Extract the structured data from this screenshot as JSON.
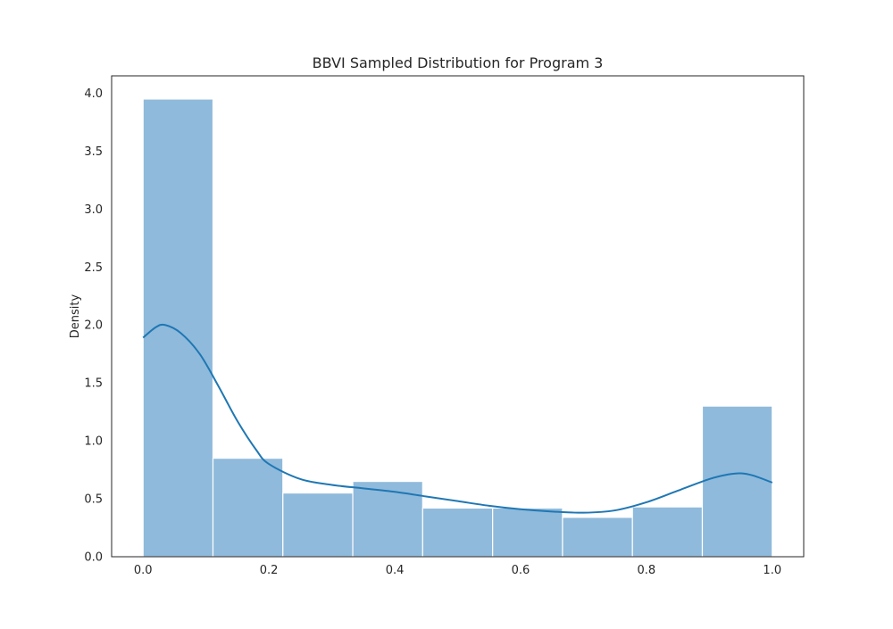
{
  "chart_data": {
    "type": "histogram",
    "title": "BBVI Sampled Distribution for Program 3",
    "xlabel": "",
    "ylabel": "Density",
    "xlim": [
      -0.05,
      1.05
    ],
    "ylim": [
      0,
      4.15
    ],
    "x_ticks": [
      "0.0",
      "0.2",
      "0.4",
      "0.6",
      "0.8",
      "1.0"
    ],
    "y_ticks": [
      "0.0",
      "0.5",
      "1.0",
      "1.5",
      "2.0",
      "2.5",
      "3.0",
      "3.5",
      "4.0"
    ],
    "grid": false,
    "bins": [
      {
        "start": 0.0,
        "end": 0.1111,
        "density": 3.95
      },
      {
        "start": 0.1111,
        "end": 0.2222,
        "density": 0.85
      },
      {
        "start": 0.2222,
        "end": 0.3333,
        "density": 0.55
      },
      {
        "start": 0.3333,
        "end": 0.4444,
        "density": 0.65
      },
      {
        "start": 0.4444,
        "end": 0.5556,
        "density": 0.42
      },
      {
        "start": 0.5556,
        "end": 0.6667,
        "density": 0.42
      },
      {
        "start": 0.6667,
        "end": 0.7778,
        "density": 0.34
      },
      {
        "start": 0.7778,
        "end": 0.8889,
        "density": 0.43
      },
      {
        "start": 0.8889,
        "end": 1.0,
        "density": 1.3
      }
    ],
    "kde": {
      "x": [
        0.0,
        0.02,
        0.035,
        0.06,
        0.09,
        0.12,
        0.15,
        0.18,
        0.2,
        0.25,
        0.3,
        0.35,
        0.4,
        0.45,
        0.5,
        0.55,
        0.6,
        0.65,
        0.7,
        0.75,
        0.8,
        0.85,
        0.9,
        0.93,
        0.95,
        0.97,
        1.0
      ],
      "y": [
        1.89,
        1.98,
        2.0,
        1.93,
        1.75,
        1.47,
        1.17,
        0.92,
        0.8,
        0.67,
        0.62,
        0.59,
        0.56,
        0.52,
        0.48,
        0.44,
        0.41,
        0.39,
        0.38,
        0.4,
        0.47,
        0.57,
        0.67,
        0.71,
        0.72,
        0.7,
        0.64
      ]
    },
    "colors": {
      "bar_fill": "#8fbadb",
      "bar_edge": "#ffffff",
      "kde_line": "#1f77b4",
      "axes_edge": "#262626",
      "text": "#262626"
    }
  }
}
